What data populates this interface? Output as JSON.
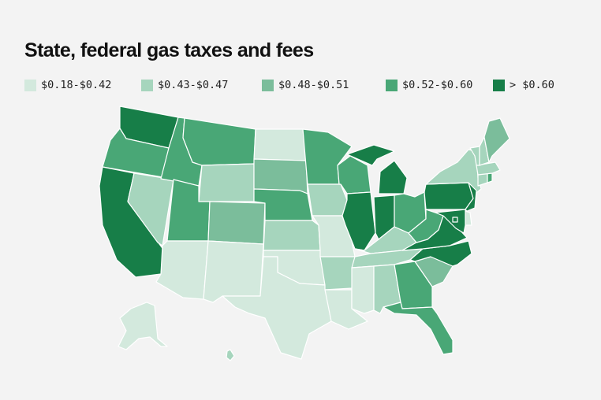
{
  "title": "State, federal gas taxes and fees",
  "legend": [
    {
      "label": "$0.18-$0.42",
      "color": "#d3e9dd"
    },
    {
      "label": "$0.43-$0.47",
      "color": "#a6d5bd"
    },
    {
      "label": "$0.48-$0.51",
      "color": "#7bbd9b"
    },
    {
      "label": "$0.52-$0.60",
      "color": "#49a776"
    },
    {
      "label": "> $0.60",
      "color": "#177e48"
    }
  ],
  "tiers": {
    "WA": 4,
    "OR": 3,
    "CA": 4,
    "NV": 1,
    "ID": 3,
    "MT": 3,
    "WY": 1,
    "UT": 3,
    "AZ": 0,
    "CO": 2,
    "NM": 0,
    "ND": 0,
    "SD": 2,
    "NE": 3,
    "KS": 1,
    "OK": 0,
    "TX": 0,
    "MN": 3,
    "IA": 1,
    "MO": 0,
    "AR": 1,
    "LA": 0,
    "WI": 3,
    "IL": 4,
    "MI": 4,
    "IN": 4,
    "OH": 3,
    "KY": 1,
    "TN": 1,
    "MS": 0,
    "AL": 1,
    "GA": 3,
    "FL": 3,
    "SC": 2,
    "NC": 4,
    "VA": 4,
    "WV": 3,
    "PA": 4,
    "NY": 1,
    "NJ": 4,
    "DE": 0,
    "MD": 4,
    "DC": 4,
    "CT": 1,
    "RI": 3,
    "MA": 1,
    "VT": 1,
    "NH": 1,
    "ME": 2,
    "AK": 0,
    "HI": 1
  }
}
